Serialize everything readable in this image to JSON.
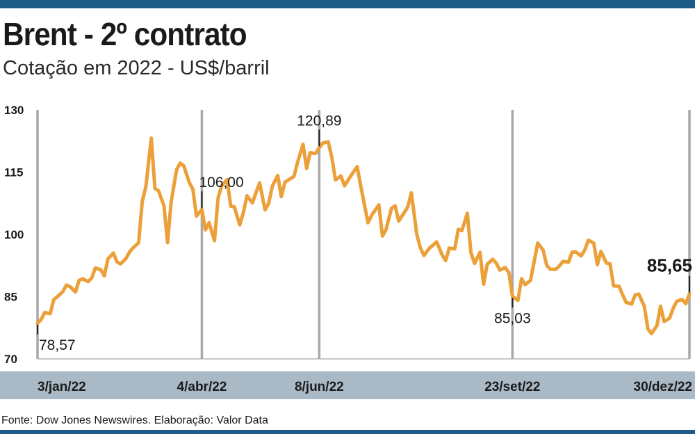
{
  "header": {
    "title": "Brent - 2º contrato",
    "subtitle": "Cotação em 2022 - US$/barril"
  },
  "footer": {
    "source": "Fonte: Dow Jones Newswires. Elaboração: Valor Data"
  },
  "colors": {
    "line": "#eca03a",
    "band": "#a9b9c6",
    "bar": "#1d5c86",
    "vline": "#a8a8a8"
  },
  "chart_data": {
    "type": "line",
    "title": "Brent - 2º contrato",
    "subtitle": "Cotação em 2022 - US$/barril",
    "xlabel": "",
    "ylabel": "",
    "ylim": [
      70,
      130
    ],
    "yticks": [
      130,
      115,
      100,
      85,
      70
    ],
    "grid": "vertical",
    "x_range": [
      "2022-01-03",
      "2022-12-30"
    ],
    "date_labels": [
      {
        "date": "2022-01-03",
        "label": "3/jan/22"
      },
      {
        "date": "2022-04-04",
        "label": "4/abr/22"
      },
      {
        "date": "2022-06-08",
        "label": "8/jun/22"
      },
      {
        "date": "2022-09-23",
        "label": "23/set/22"
      },
      {
        "date": "2022-12-30",
        "label": "30/dez/22"
      }
    ],
    "annotations": [
      {
        "date": "2022-01-03",
        "value": 78.57,
        "label": "78,57",
        "pos": "below"
      },
      {
        "date": "2022-04-04",
        "value": 106.0,
        "label": "106,00",
        "pos": "above"
      },
      {
        "date": "2022-06-08",
        "value": 120.89,
        "label": "120,89",
        "pos": "above"
      },
      {
        "date": "2022-09-23",
        "value": 85.03,
        "label": "85,03",
        "pos": "below"
      },
      {
        "date": "2022-12-30",
        "value": 85.65,
        "label": "85,65",
        "pos": "above",
        "bold": true
      }
    ],
    "series": [
      {
        "values": [
          [
            "2022-01-03",
            78.57
          ],
          [
            "2022-01-05",
            79.5
          ],
          [
            "2022-01-07",
            81.2
          ],
          [
            "2022-01-10",
            80.9
          ],
          [
            "2022-01-12",
            84.3
          ],
          [
            "2022-01-14",
            85.0
          ],
          [
            "2022-01-17",
            86.2
          ],
          [
            "2022-01-19",
            87.8
          ],
          [
            "2022-01-21",
            87.4
          ],
          [
            "2022-01-24",
            86.1
          ],
          [
            "2022-01-26",
            88.9
          ],
          [
            "2022-01-28",
            89.3
          ],
          [
            "2022-01-31",
            88.6
          ],
          [
            "2022-02-02",
            89.5
          ],
          [
            "2022-02-04",
            91.9
          ],
          [
            "2022-02-07",
            91.5
          ],
          [
            "2022-02-09",
            90.0
          ],
          [
            "2022-02-11",
            94.1
          ],
          [
            "2022-02-14",
            95.5
          ],
          [
            "2022-02-16",
            93.4
          ],
          [
            "2022-02-18",
            92.9
          ],
          [
            "2022-02-21",
            94.2
          ],
          [
            "2022-02-23",
            95.8
          ],
          [
            "2022-02-25",
            96.8
          ],
          [
            "2022-02-28",
            98.0
          ],
          [
            "2022-03-02",
            108.0
          ],
          [
            "2022-03-04",
            111.5
          ],
          [
            "2022-03-07",
            123.2
          ],
          [
            "2022-03-09",
            111.1
          ],
          [
            "2022-03-11",
            110.5
          ],
          [
            "2022-03-14",
            106.9
          ],
          [
            "2022-03-16",
            98.0
          ],
          [
            "2022-03-18",
            107.9
          ],
          [
            "2022-03-21",
            115.6
          ],
          [
            "2022-03-23",
            117.2
          ],
          [
            "2022-03-25",
            116.5
          ],
          [
            "2022-03-28",
            112.5
          ],
          [
            "2022-03-30",
            110.9
          ],
          [
            "2022-04-01",
            104.4
          ],
          [
            "2022-04-04",
            106.0
          ],
          [
            "2022-04-06",
            101.1
          ],
          [
            "2022-04-08",
            102.8
          ],
          [
            "2022-04-11",
            98.5
          ],
          [
            "2022-04-13",
            108.8
          ],
          [
            "2022-04-15",
            111.7
          ],
          [
            "2022-04-18",
            113.2
          ],
          [
            "2022-04-20",
            106.8
          ],
          [
            "2022-04-22",
            106.6
          ],
          [
            "2022-04-25",
            102.3
          ],
          [
            "2022-04-27",
            105.3
          ],
          [
            "2022-04-29",
            109.3
          ],
          [
            "2022-05-02",
            107.6
          ],
          [
            "2022-05-04",
            110.1
          ],
          [
            "2022-05-06",
            112.4
          ],
          [
            "2022-05-09",
            105.9
          ],
          [
            "2022-05-11",
            107.5
          ],
          [
            "2022-05-13",
            111.6
          ],
          [
            "2022-05-16",
            114.2
          ],
          [
            "2022-05-18",
            109.1
          ],
          [
            "2022-05-20",
            112.6
          ],
          [
            "2022-05-23",
            113.4
          ],
          [
            "2022-05-25",
            114.0
          ],
          [
            "2022-05-27",
            117.4
          ],
          [
            "2022-05-30",
            121.7
          ],
          [
            "2022-06-01",
            115.9
          ],
          [
            "2022-06-03",
            119.7
          ],
          [
            "2022-06-06",
            119.5
          ],
          [
            "2022-06-08",
            120.89
          ],
          [
            "2022-06-10",
            122.0
          ],
          [
            "2022-06-13",
            122.3
          ],
          [
            "2022-06-15",
            118.5
          ],
          [
            "2022-06-17",
            113.1
          ],
          [
            "2022-06-20",
            114.1
          ],
          [
            "2022-06-22",
            111.7
          ],
          [
            "2022-06-24",
            113.1
          ],
          [
            "2022-06-27",
            115.1
          ],
          [
            "2022-06-29",
            116.3
          ],
          [
            "2022-07-01",
            111.6
          ],
          [
            "2022-07-05",
            102.8
          ],
          [
            "2022-07-07",
            104.6
          ],
          [
            "2022-07-11",
            107.1
          ],
          [
            "2022-07-13",
            99.6
          ],
          [
            "2022-07-15",
            101.2
          ],
          [
            "2022-07-18",
            106.3
          ],
          [
            "2022-07-20",
            106.9
          ],
          [
            "2022-07-22",
            103.2
          ],
          [
            "2022-07-25",
            105.2
          ],
          [
            "2022-07-27",
            106.6
          ],
          [
            "2022-07-29",
            110.0
          ],
          [
            "2022-08-01",
            100.0
          ],
          [
            "2022-08-03",
            96.8
          ],
          [
            "2022-08-05",
            94.9
          ],
          [
            "2022-08-08",
            96.7
          ],
          [
            "2022-08-10",
            97.4
          ],
          [
            "2022-08-12",
            98.2
          ],
          [
            "2022-08-15",
            95.1
          ],
          [
            "2022-08-17",
            93.7
          ],
          [
            "2022-08-19",
            96.7
          ],
          [
            "2022-08-22",
            96.5
          ],
          [
            "2022-08-24",
            101.2
          ],
          [
            "2022-08-26",
            100.9
          ],
          [
            "2022-08-29",
            105.1
          ],
          [
            "2022-08-31",
            95.6
          ],
          [
            "2022-09-02",
            93.0
          ],
          [
            "2022-09-05",
            95.7
          ],
          [
            "2022-09-07",
            88.0
          ],
          [
            "2022-09-09",
            92.8
          ],
          [
            "2022-09-12",
            94.0
          ],
          [
            "2022-09-14",
            93.1
          ],
          [
            "2022-09-16",
            91.4
          ],
          [
            "2022-09-19",
            92.0
          ],
          [
            "2022-09-21",
            90.8
          ],
          [
            "2022-09-23",
            85.03
          ],
          [
            "2022-09-26",
            84.1
          ],
          [
            "2022-09-28",
            89.3
          ],
          [
            "2022-09-30",
            87.9
          ],
          [
            "2022-10-03",
            88.9
          ],
          [
            "2022-10-05",
            93.4
          ],
          [
            "2022-10-07",
            97.9
          ],
          [
            "2022-10-10",
            96.2
          ],
          [
            "2022-10-12",
            92.5
          ],
          [
            "2022-10-14",
            91.6
          ],
          [
            "2022-10-17",
            91.6
          ],
          [
            "2022-10-19",
            92.4
          ],
          [
            "2022-10-21",
            93.5
          ],
          [
            "2022-10-24",
            93.3
          ],
          [
            "2022-10-26",
            95.7
          ],
          [
            "2022-10-28",
            95.8
          ],
          [
            "2022-10-31",
            94.8
          ],
          [
            "2022-11-02",
            96.2
          ],
          [
            "2022-11-04",
            98.6
          ],
          [
            "2022-11-07",
            97.9
          ],
          [
            "2022-11-09",
            92.7
          ],
          [
            "2022-11-11",
            95.9
          ],
          [
            "2022-11-14",
            93.1
          ],
          [
            "2022-11-16",
            92.9
          ],
          [
            "2022-11-18",
            87.6
          ],
          [
            "2022-11-21",
            87.5
          ],
          [
            "2022-11-23",
            85.4
          ],
          [
            "2022-11-25",
            83.6
          ],
          [
            "2022-11-28",
            83.2
          ],
          [
            "2022-11-30",
            85.4
          ],
          [
            "2022-12-02",
            85.6
          ],
          [
            "2022-12-05",
            82.7
          ],
          [
            "2022-12-07",
            77.2
          ],
          [
            "2022-12-09",
            76.1
          ],
          [
            "2022-12-12",
            77.99
          ],
          [
            "2022-12-14",
            82.7
          ],
          [
            "2022-12-16",
            79.0
          ],
          [
            "2022-12-19",
            79.8
          ],
          [
            "2022-12-21",
            82.2
          ],
          [
            "2022-12-23",
            83.9
          ],
          [
            "2022-12-26",
            84.3
          ],
          [
            "2022-12-28",
            83.3
          ],
          [
            "2022-12-30",
            85.65
          ]
        ]
      }
    ]
  }
}
